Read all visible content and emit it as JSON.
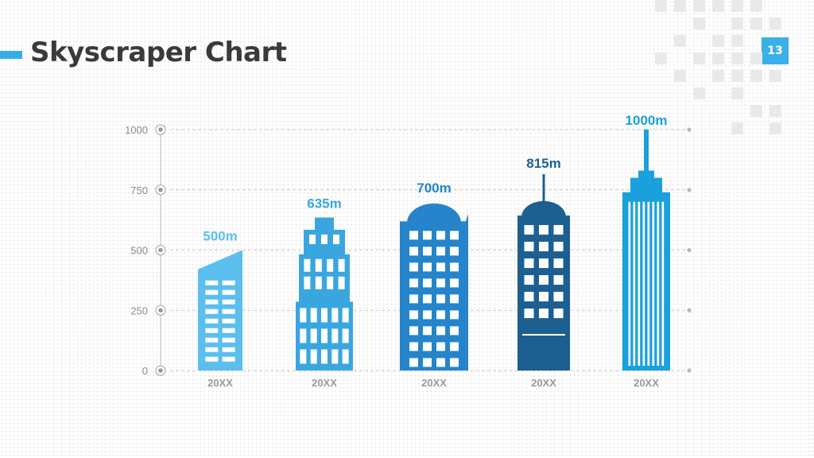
{
  "page": {
    "title": "Skyscraper Chart",
    "page_number": "13",
    "accent_color": "#33aee6"
  },
  "chart_data": {
    "type": "bar",
    "title": "",
    "xlabel": "",
    "ylabel": "",
    "ylim": [
      0,
      1000
    ],
    "yticks": [
      0,
      250,
      500,
      750,
      1000
    ],
    "grid": "dashed-horizontal",
    "categories": [
      "20XX",
      "20XX",
      "20XX",
      "20XX",
      "20XX"
    ],
    "values": [
      500,
      635,
      700,
      815,
      1000
    ],
    "value_labels": [
      "500m",
      "635m",
      "700m",
      "815m",
      "1000m"
    ],
    "colors": [
      "#5bbfee",
      "#3aa6e0",
      "#2584cc",
      "#1d5f91",
      "#1aa0dc"
    ]
  }
}
